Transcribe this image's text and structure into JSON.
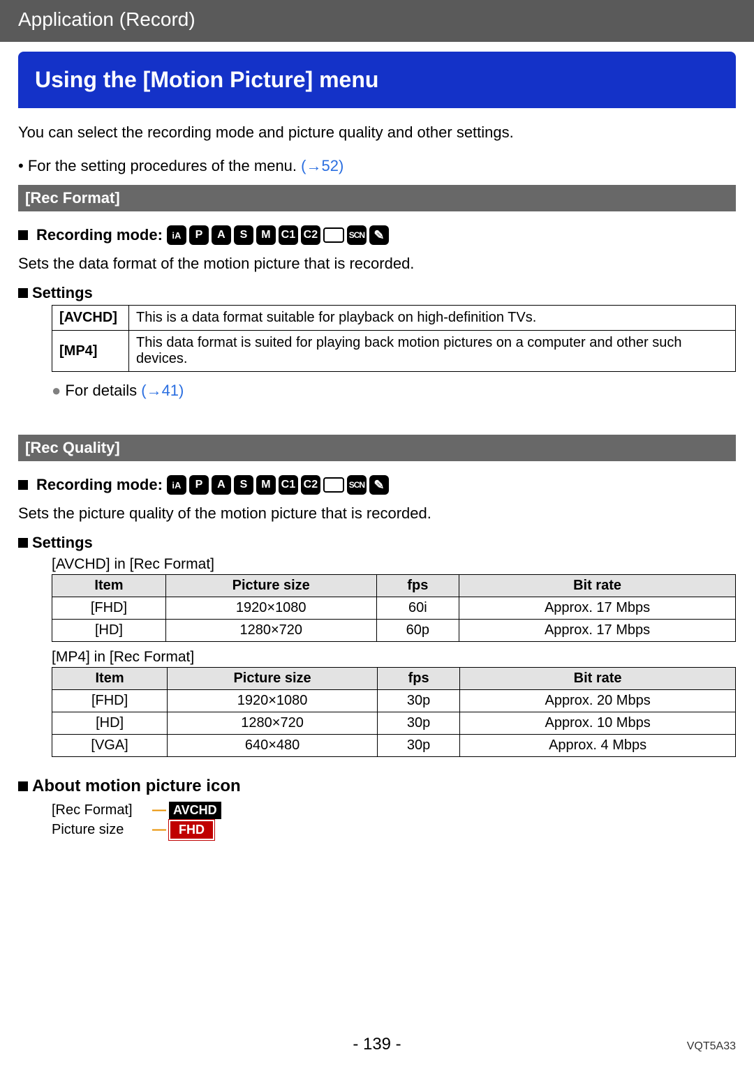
{
  "header": {
    "breadcrumb": "Application (Record)"
  },
  "title": "Using the [Motion Picture] menu",
  "intro": "You can select the recording mode and picture quality and other settings.",
  "proc_line_prefix": "• For the setting procedures of the menu. ",
  "proc_link": "(→52)",
  "rec_format": {
    "bar": "[Rec Format]",
    "mode_label": "Recording mode:",
    "desc": "Sets the data format of the motion picture that is recorded.",
    "settings_label": "Settings",
    "rows": [
      {
        "key": "[AVCHD]",
        "val": "This is a data format suitable for playback on high-definition TVs."
      },
      {
        "key": "[MP4]",
        "val": "This data format is suited for playing back motion pictures on a computer and other such devices."
      }
    ],
    "details_prefix": "For details ",
    "details_link": "(→41)"
  },
  "rec_quality": {
    "bar": "[Rec Quality]",
    "mode_label": "Recording mode:",
    "desc": "Sets the picture quality of the motion picture that is recorded.",
    "settings_label": "Settings",
    "caption_avchd": "[AVCHD] in [Rec Format]",
    "caption_mp4": "[MP4] in [Rec Format]",
    "columns": [
      "Item",
      "Picture size",
      "fps",
      "Bit rate"
    ],
    "avchd_rows": [
      [
        "[FHD]",
        "1920×1080",
        "60i",
        "Approx. 17 Mbps"
      ],
      [
        "[HD]",
        "1280×720",
        "60p",
        "Approx. 17 Mbps"
      ]
    ],
    "mp4_rows": [
      [
        "[FHD]",
        "1920×1080",
        "30p",
        "Approx. 20 Mbps"
      ],
      [
        "[HD]",
        "1280×720",
        "30p",
        "Approx. 10 Mbps"
      ],
      [
        "[VGA]",
        "640×480",
        "30p",
        "Approx. 4 Mbps"
      ]
    ]
  },
  "mode_icons": [
    "iA",
    "P",
    "A",
    "S",
    "M",
    "C1",
    "C2",
    "▭",
    "SCN",
    "🎨"
  ],
  "about": {
    "heading": "About motion picture icon",
    "rec_format_label": "[Rec Format]",
    "picture_size_label": "Picture size",
    "badge1": "AVCHD",
    "badge2": "FHD"
  },
  "footer": {
    "page": "- 139 -",
    "doc": "VQT5A33"
  },
  "colors": {
    "header_bg": "#5a5a5a",
    "title_bg": "#1432c8",
    "section_bg": "#686868",
    "link": "#2a6ee0",
    "th_bg": "#e3e3e3",
    "accent_orange": "#e89000",
    "badge_red": "#c00000"
  }
}
